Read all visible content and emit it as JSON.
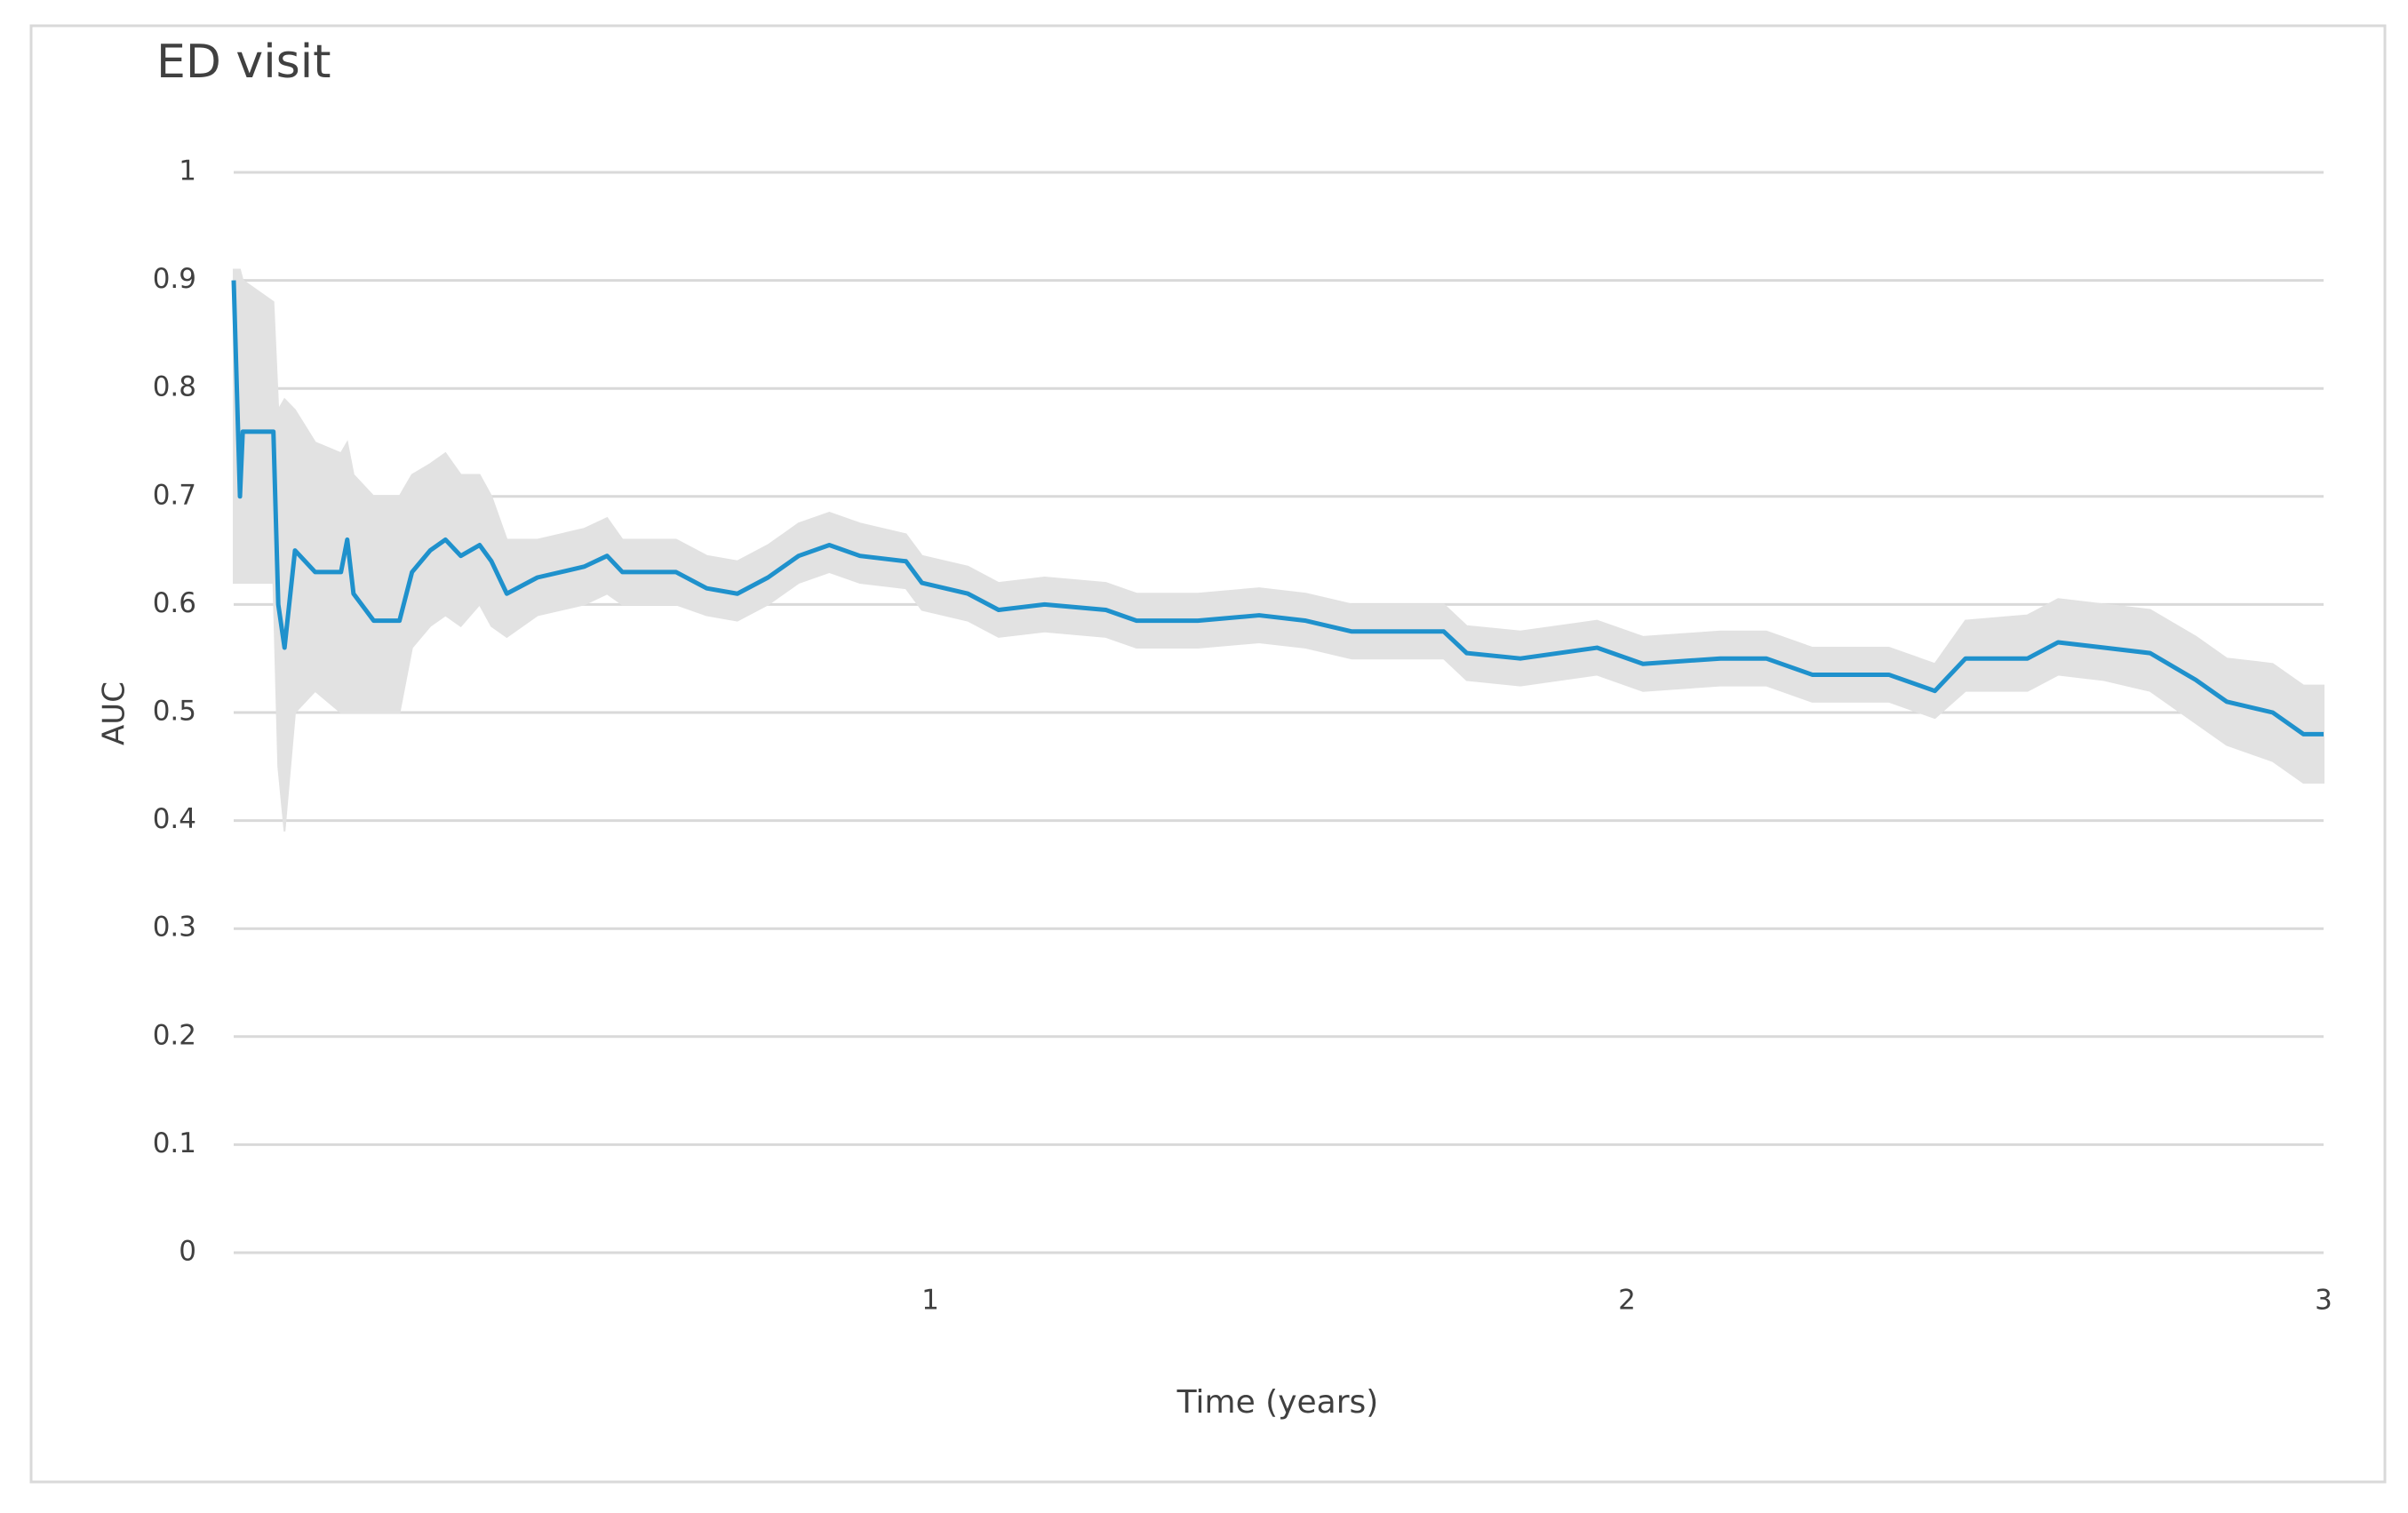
{
  "chart_data": {
    "type": "line",
    "title": "ED visit",
    "x_label": "Time (years)",
    "y_label": "AUC",
    "color": "#1f91cc",
    "band_color": "#e2e2e2",
    "grid": true,
    "xlim": [
      0,
      3
    ],
    "xticks": [
      1,
      2,
      3
    ],
    "ylim": [
      0,
      1
    ],
    "yticks": [
      0,
      0.1,
      0.2,
      0.3,
      0.4,
      0.5,
      0.6,
      0.7,
      0.8,
      0.9,
      1
    ],
    "x": [
      0,
      0.009,
      0.013,
      0.057,
      0.064,
      0.073,
      0.088,
      0.117,
      0.154,
      0.163,
      0.172,
      0.201,
      0.238,
      0.256,
      0.282,
      0.304,
      0.326,
      0.353,
      0.37,
      0.392,
      0.436,
      0.503,
      0.536,
      0.558,
      0.635,
      0.679,
      0.723,
      0.767,
      0.811,
      0.855,
      0.899,
      0.965,
      0.988,
      1.054,
      1.098,
      1.164,
      1.252,
      1.296,
      1.384,
      1.472,
      1.539,
      1.605,
      1.693,
      1.737,
      1.77,
      1.847,
      1.957,
      2.023,
      2.134,
      2.2,
      2.266,
      2.376,
      2.442,
      2.486,
      2.575,
      2.619,
      2.685,
      2.751,
      2.817,
      2.861,
      2.927,
      2.971,
      3
    ],
    "values": [
      0.9,
      0.7,
      0.76,
      0.76,
      0.6,
      0.56,
      0.65,
      0.63,
      0.63,
      0.66,
      0.61,
      0.585,
      0.585,
      0.63,
      0.65,
      0.66,
      0.645,
      0.655,
      0.64,
      0.61,
      0.625,
      0.635,
      0.645,
      0.63,
      0.63,
      0.615,
      0.61,
      0.625,
      0.645,
      0.655,
      0.645,
      0.64,
      0.62,
      0.61,
      0.595,
      0.6,
      0.595,
      0.585,
      0.585,
      0.59,
      0.585,
      0.575,
      0.575,
      0.575,
      0.555,
      0.55,
      0.56,
      0.545,
      0.55,
      0.55,
      0.535,
      0.535,
      0.52,
      0.55,
      0.55,
      0.565,
      0.56,
      0.555,
      0.53,
      0.51,
      0.5,
      0.48,
      0.48
    ],
    "lower": [
      0.62,
      0.62,
      0.62,
      0.62,
      0.45,
      0.39,
      0.5,
      0.52,
      0.5,
      0.5,
      0.5,
      0.5,
      0.5,
      0.56,
      0.58,
      0.59,
      0.58,
      0.6,
      0.58,
      0.57,
      0.59,
      0.6,
      0.61,
      0.6,
      0.6,
      0.59,
      0.585,
      0.6,
      0.62,
      0.63,
      0.62,
      0.615,
      0.595,
      0.585,
      0.57,
      0.575,
      0.57,
      0.56,
      0.56,
      0.565,
      0.56,
      0.55,
      0.55,
      0.55,
      0.53,
      0.525,
      0.535,
      0.52,
      0.525,
      0.525,
      0.51,
      0.51,
      0.495,
      0.52,
      0.52,
      0.535,
      0.53,
      0.52,
      0.49,
      0.47,
      0.455,
      0.435,
      0.435
    ],
    "upper": [
      0.91,
      0.91,
      0.9,
      0.88,
      0.78,
      0.79,
      0.78,
      0.75,
      0.74,
      0.75,
      0.72,
      0.7,
      0.7,
      0.72,
      0.73,
      0.74,
      0.72,
      0.72,
      0.7,
      0.66,
      0.66,
      0.67,
      0.68,
      0.66,
      0.66,
      0.645,
      0.64,
      0.655,
      0.675,
      0.685,
      0.675,
      0.665,
      0.645,
      0.635,
      0.62,
      0.625,
      0.62,
      0.61,
      0.61,
      0.615,
      0.61,
      0.6,
      0.6,
      0.6,
      0.58,
      0.575,
      0.585,
      0.57,
      0.575,
      0.575,
      0.56,
      0.56,
      0.545,
      0.585,
      0.59,
      0.605,
      0.6,
      0.595,
      0.57,
      0.55,
      0.545,
      0.525,
      0.525
    ]
  }
}
